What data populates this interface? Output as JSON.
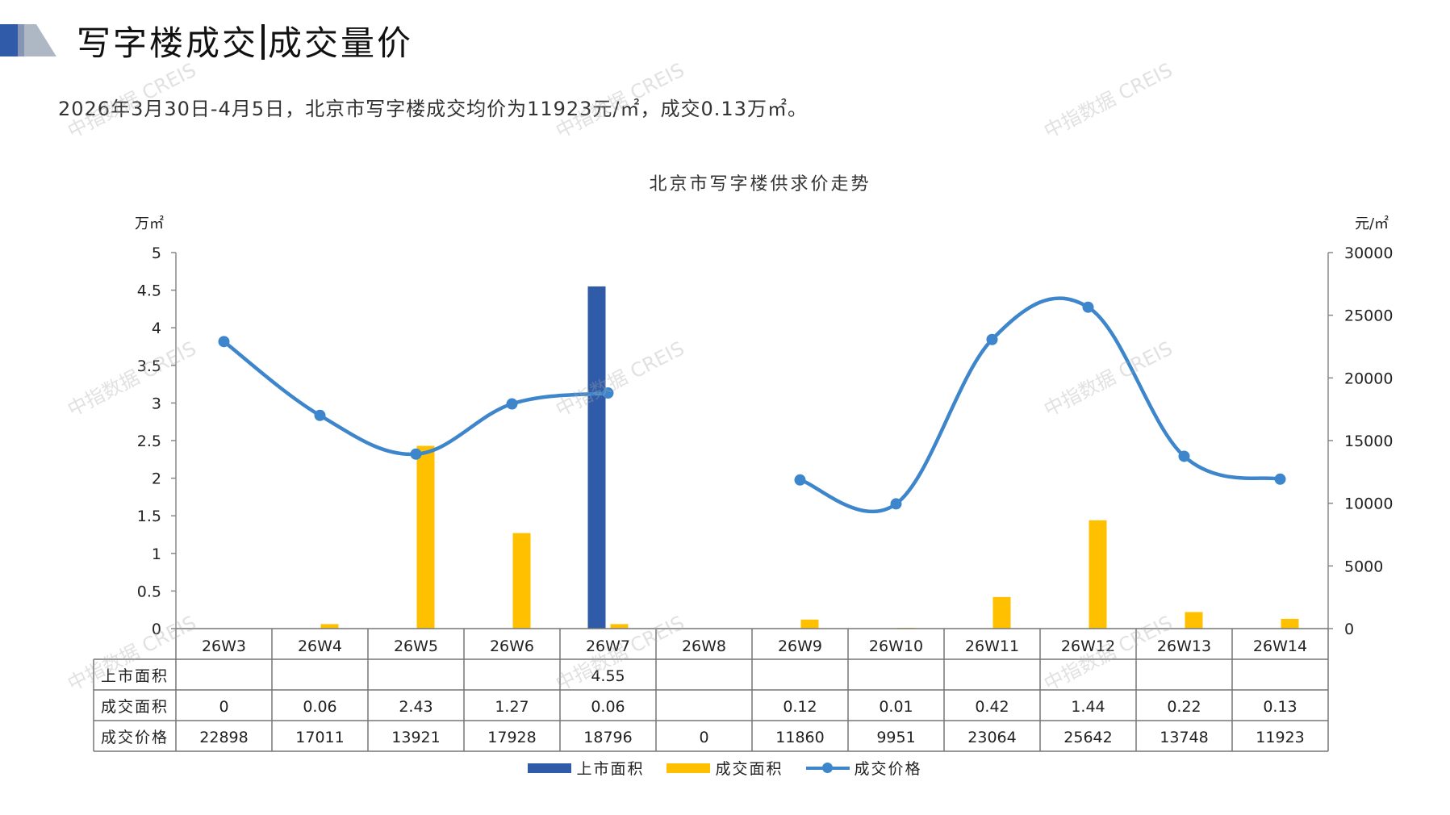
{
  "page": {
    "title_left": "写字楼成交",
    "title_right": "成交量价",
    "subtitle": "2026年3月30日-4月5日，北京市写字楼成交均价为11923元/㎡，成交0.13万㎡。",
    "watermark": "中指数据 CREIS"
  },
  "colors": {
    "supply": "#2F5BA8",
    "deal_area": "#FFC000",
    "price": "#3E86CB",
    "logo_dark": "#2F5BA8",
    "logo_gray": "#9AA5B5"
  },
  "chart_data": {
    "type": "bar",
    "title": "北京市写字楼供求价走势",
    "y_left_unit": "万㎡",
    "y_right_unit": "元/㎡",
    "ylim_left": [
      0,
      5
    ],
    "ylim_right": [
      0,
      30000
    ],
    "left_ticks": [
      "5",
      "4.5",
      "4",
      "3.5",
      "3",
      "2.5",
      "2",
      "1.5",
      "1",
      "0.5",
      "0"
    ],
    "right_ticks": [
      "30000",
      "25000",
      "20000",
      "15000",
      "10000",
      "5000",
      "0"
    ],
    "categories": [
      "26W3",
      "26W4",
      "26W5",
      "26W6",
      "26W7",
      "26W8",
      "26W9",
      "26W10",
      "26W11",
      "26W12",
      "26W13",
      "26W14"
    ],
    "series": [
      {
        "name": "上市面积",
        "type": "bar",
        "axis": "left",
        "values": [
          null,
          null,
          null,
          null,
          4.55,
          null,
          null,
          null,
          null,
          null,
          null,
          null
        ],
        "labels": [
          "",
          "",
          "",
          "",
          "4.55",
          "",
          "",
          "",
          "",
          "",
          "",
          ""
        ]
      },
      {
        "name": "成交面积",
        "type": "bar",
        "axis": "left",
        "values": [
          0,
          0.06,
          2.43,
          1.27,
          0.06,
          null,
          0.12,
          0.01,
          0.42,
          1.44,
          0.22,
          0.13
        ],
        "labels": [
          "0",
          "0.06",
          "2.43",
          "1.27",
          "0.06",
          "",
          "0.12",
          "0.01",
          "0.42",
          "1.44",
          "0.22",
          "0.13"
        ]
      },
      {
        "name": "成交价格",
        "type": "line",
        "axis": "right",
        "values": [
          22898,
          17011,
          13921,
          17928,
          18796,
          0,
          11860,
          9951,
          23064,
          25642,
          13748,
          11923
        ],
        "labels": [
          "22898",
          "17011",
          "13921",
          "17928",
          "18796",
          "0",
          "11860",
          "9951",
          "23064",
          "25642",
          "13748",
          "11923"
        ]
      }
    ],
    "legend": "bottom"
  }
}
